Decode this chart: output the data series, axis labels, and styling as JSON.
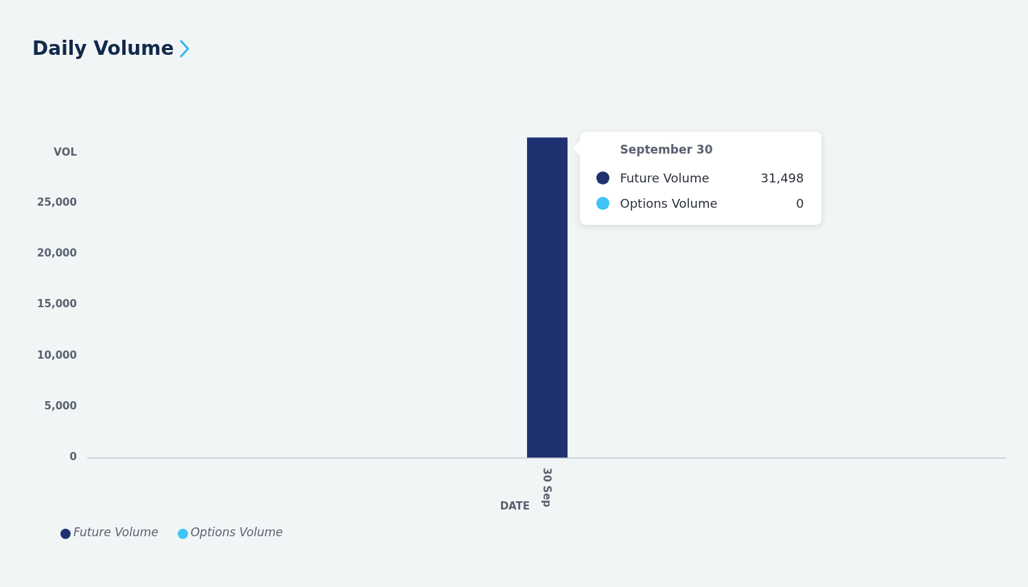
{
  "chart_data": {
    "type": "bar",
    "title": "Daily Volume",
    "xlabel": "DATE",
    "ylabel": "VOL",
    "categories": [
      "30 Sep"
    ],
    "stacked": true,
    "series": [
      {
        "name": "Future Volume",
        "color": "#1f3170",
        "values": [
          31498
        ]
      },
      {
        "name": "Options Volume",
        "color": "#3ec4f7",
        "values": [
          0
        ]
      }
    ],
    "ylim": [
      0,
      32000
    ],
    "yticks": [
      0,
      {
        "value": 5000,
        "label": "5,000"
      },
      {
        "value": 10000,
        "label": "10,000"
      },
      {
        "value": 15000,
        "label": "15,000"
      },
      {
        "value": 20000,
        "label": "20,000"
      },
      {
        "value": 25000,
        "label": "25,000"
      }
    ],
    "annotations": [
      "September 30",
      "Future Volume",
      "31,498",
      "Options Volume",
      "0"
    ],
    "legend": "bottom left"
  }
}
